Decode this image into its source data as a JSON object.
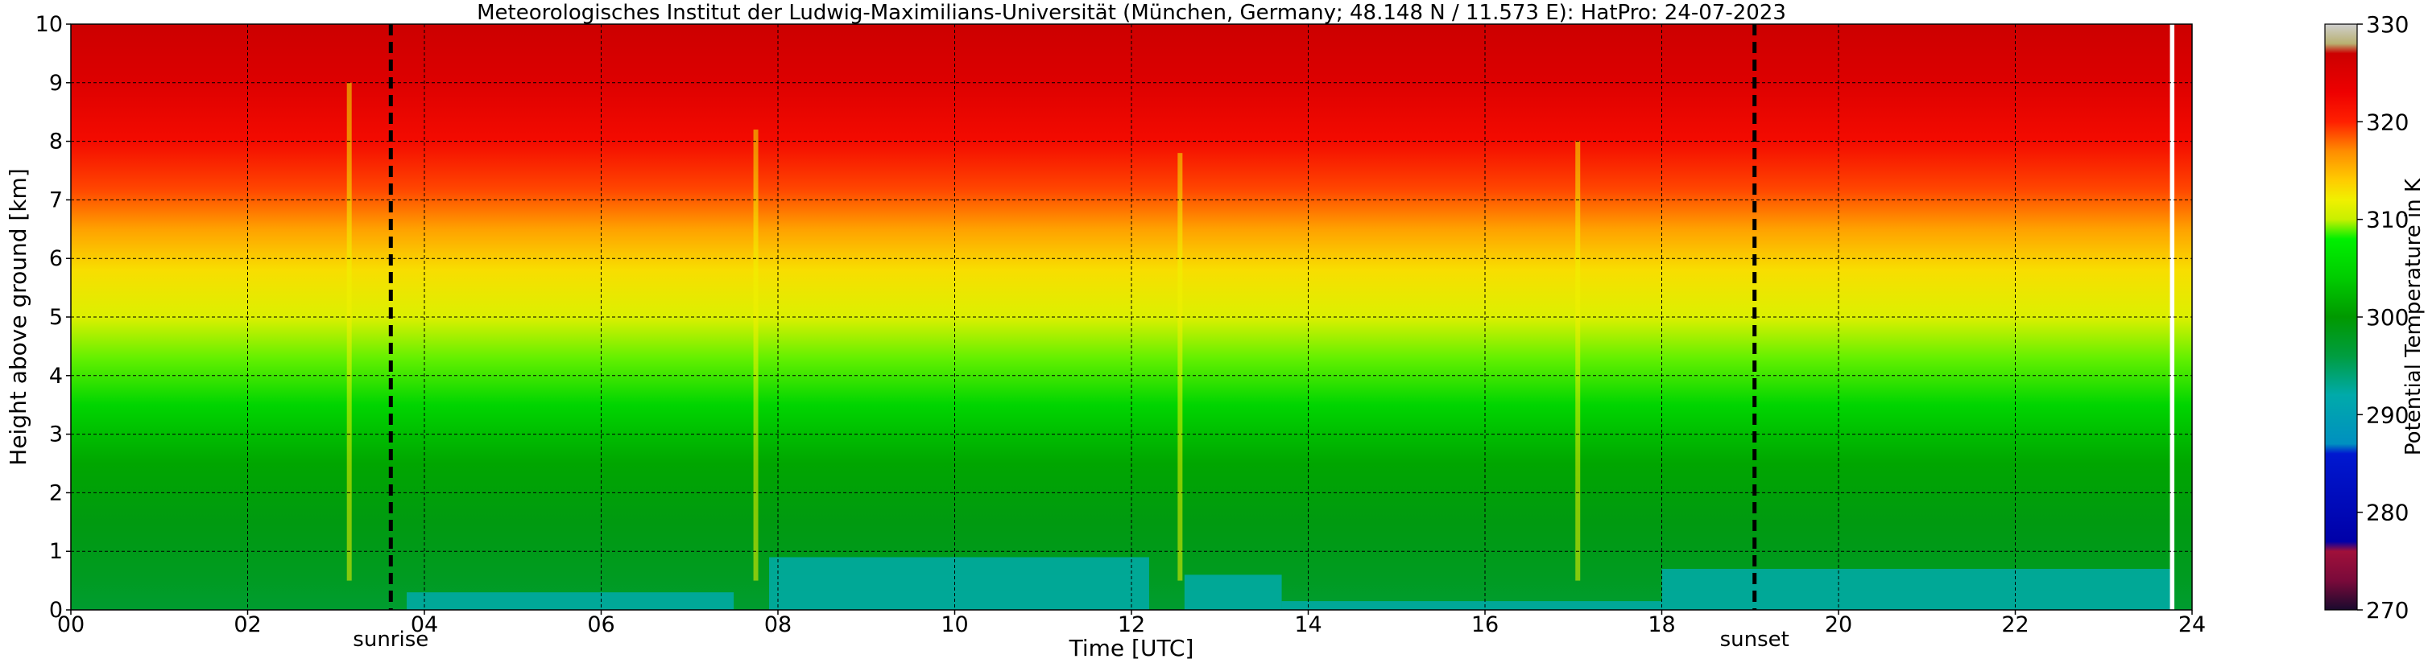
{
  "chart_data": {
    "type": "heatmap",
    "title": "Meteorologisches Institut der Ludwig-Maximilians-Universität (München, Germany; 48.148 N / 11.573 E):    HatPro: 24-07-2023",
    "xlabel": "Time [UTC]",
    "ylabel": "Height above ground [km]",
    "xlim": [
      0,
      24
    ],
    "ylim": [
      0,
      10
    ],
    "x_ticks": [
      "00",
      "02",
      "04",
      "06",
      "08",
      "10",
      "12",
      "14",
      "16",
      "18",
      "20",
      "22",
      "24"
    ],
    "y_ticks": [
      "0",
      "1",
      "2",
      "3",
      "4",
      "5",
      "6",
      "7",
      "8",
      "9",
      "10"
    ],
    "grid": true,
    "vlines": [
      {
        "x": 3.62,
        "label": "sunrise"
      },
      {
        "x": 19.05,
        "label": "sunset"
      }
    ],
    "colorbar": {
      "label": "Potential Temperature in K",
      "range": [
        270,
        330
      ],
      "ticks": [
        "270",
        "280",
        "290",
        "300",
        "310",
        "320",
        "330"
      ],
      "stops": [
        {
          "value": 270,
          "color": "#1a0a2e"
        },
        {
          "value": 273,
          "color": "#7a0a3a"
        },
        {
          "value": 276,
          "color": "#a0103a"
        },
        {
          "value": 277,
          "color": "#0000a8"
        },
        {
          "value": 286,
          "color": "#0018d0"
        },
        {
          "value": 287,
          "color": "#0090c0"
        },
        {
          "value": 292,
          "color": "#00aaaa"
        },
        {
          "value": 296,
          "color": "#009d40"
        },
        {
          "value": 300,
          "color": "#009900"
        },
        {
          "value": 304,
          "color": "#00cc00"
        },
        {
          "value": 308,
          "color": "#00f000"
        },
        {
          "value": 310,
          "color": "#c8f000"
        },
        {
          "value": 312,
          "color": "#f0f000"
        },
        {
          "value": 314,
          "color": "#ffcc00"
        },
        {
          "value": 317,
          "color": "#ff8c00"
        },
        {
          "value": 320,
          "color": "#ff2000"
        },
        {
          "value": 323,
          "color": "#ee0000"
        },
        {
          "value": 327,
          "color": "#cc0000"
        },
        {
          "value": 328,
          "color": "#b8b070"
        },
        {
          "value": 330,
          "color": "#d0d0d0"
        }
      ]
    },
    "profile": {
      "height_km": [
        0,
        0.6,
        1.5,
        2.5,
        3.5,
        4.3,
        5.0,
        5.8,
        6.5,
        7.2,
        8.0,
        9.0,
        10.0
      ],
      "theta_K": [
        297,
        298,
        299,
        301,
        305,
        309,
        311,
        313,
        316,
        319,
        322,
        325,
        327
      ]
    },
    "cool_layer": {
      "description": "near-surface teal layer",
      "segments": [
        {
          "x_start": 3.8,
          "x_end": 7.5,
          "top_km": 0.3
        },
        {
          "x_start": 7.9,
          "x_end": 12.2,
          "top_km": 0.9
        },
        {
          "x_start": 12.6,
          "x_end": 13.7,
          "top_km": 0.6
        },
        {
          "x_start": 13.7,
          "x_end": 18.0,
          "top_km": 0.15
        },
        {
          "x_start": 18.0,
          "x_end": 23.8,
          "top_km": 0.7
        }
      ]
    },
    "spikes": [
      {
        "x": 3.15,
        "top_km": 9.0
      },
      {
        "x": 7.75,
        "top_km": 8.2
      },
      {
        "x": 12.55,
        "top_km": 7.8
      },
      {
        "x": 17.05,
        "top_km": 8.0
      }
    ],
    "missing_data": [
      {
        "x_start": 23.75,
        "x_end": 23.8
      }
    ]
  }
}
